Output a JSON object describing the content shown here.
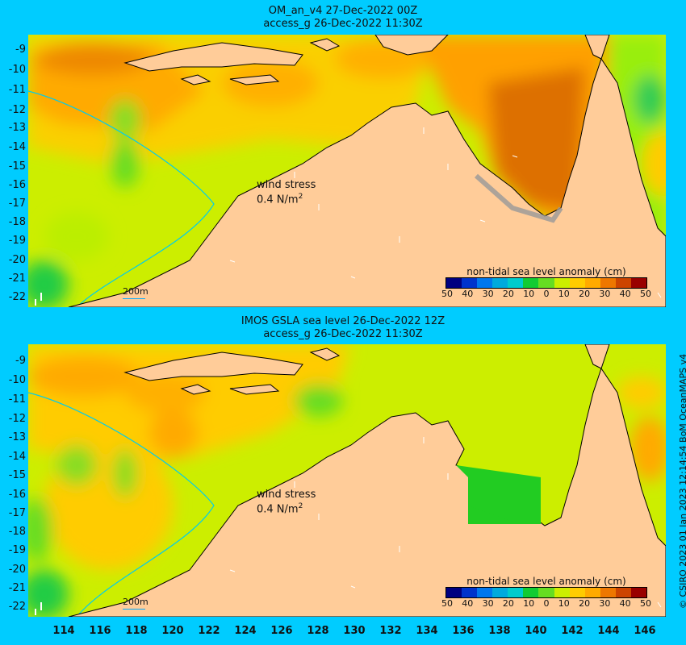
{
  "panels": [
    {
      "title_line1": "OM_an_v4  27-Dec-2022 00Z",
      "title_line2": "access_g 26-Dec-2022 11:30Z",
      "wind_label_line1": "wind stress",
      "wind_label_line2": "0.4 N/m",
      "wind_label_sup": "2",
      "depth_label": "200m",
      "colorbar_title": "non-tidal sea level anomaly (cm)",
      "colorbar_ticks": [
        "50",
        "40",
        "30",
        "20",
        "10",
        "0",
        "10",
        "20",
        "30",
        "40",
        "50"
      ]
    },
    {
      "title_line1": "IMOS GSLA sea level  26-Dec-2022 12Z",
      "title_line2": "access_g 26-Dec-2022 11:30Z",
      "wind_label_line1": "wind stress",
      "wind_label_line2": "0.4 N/m",
      "wind_label_sup": "2",
      "depth_label": "200m",
      "colorbar_title": "non-tidal sea level anomaly (cm)",
      "colorbar_ticks": [
        "50",
        "40",
        "30",
        "20",
        "10",
        "0",
        "10",
        "20",
        "30",
        "40",
        "50"
      ]
    }
  ],
  "latitude_ticks": [
    "-9",
    "-10",
    "-11",
    "-12",
    "-13",
    "-14",
    "-15",
    "-16",
    "-17",
    "-18",
    "-19",
    "-20",
    "-21",
    "-22"
  ],
  "longitude_ticks": [
    "114",
    "116",
    "118",
    "120",
    "122",
    "124",
    "126",
    "128",
    "130",
    "132",
    "134",
    "136",
    "138",
    "140",
    "142",
    "144",
    "146"
  ],
  "credit": "© CSIRO 2023   01 Jan 2023 12:14:54 BoM OceanMAPS v4",
  "colors": {
    "background": "#00ccff",
    "land": "#ffcc99",
    "colorbar": [
      "#000080",
      "#0033cc",
      "#0077ee",
      "#00aadd",
      "#00cccc",
      "#11cc33",
      "#66dd22",
      "#ccee00",
      "#ffcc00",
      "#ffaa00",
      "#ee7700",
      "#cc4400",
      "#990000"
    ]
  }
}
